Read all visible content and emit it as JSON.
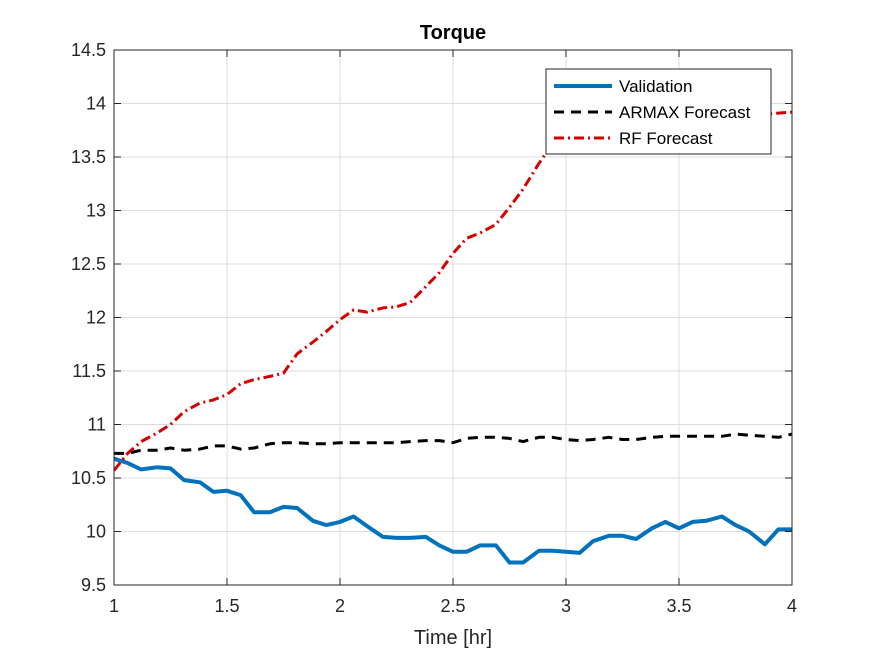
{
  "chart_data": {
    "type": "line",
    "title": "Torque",
    "xlabel": "Time [hr]",
    "ylabel": "",
    "xlim": [
      1,
      4
    ],
    "ylim": [
      9.5,
      14.5
    ],
    "xticks": [
      "1",
      "1.5",
      "2",
      "2.5",
      "3",
      "3.5",
      "4"
    ],
    "yticks": [
      "9.5",
      "10",
      "10.5",
      "11",
      "11.5",
      "12",
      "12.5",
      "13",
      "13.5",
      "14",
      "14.5"
    ],
    "grid": true,
    "legend_position": "top-right",
    "series": [
      {
        "name": "Validation",
        "color": "#0072BD",
        "style": "solid",
        "x": [
          1.0,
          1.06,
          1.12,
          1.19,
          1.25,
          1.31,
          1.38,
          1.44,
          1.5,
          1.56,
          1.62,
          1.69,
          1.75,
          1.81,
          1.88,
          1.94,
          2.0,
          2.06,
          2.12,
          2.19,
          2.25,
          2.31,
          2.38,
          2.44,
          2.5,
          2.56,
          2.62,
          2.69,
          2.75,
          2.81,
          2.88,
          2.94,
          3.0,
          3.06,
          3.12,
          3.19,
          3.25,
          3.31,
          3.38,
          3.44,
          3.5,
          3.56,
          3.62,
          3.69,
          3.75,
          3.81,
          3.88,
          3.94,
          4.0
        ],
        "y": [
          10.68,
          10.64,
          10.58,
          10.6,
          10.59,
          10.48,
          10.46,
          10.37,
          10.38,
          10.34,
          10.18,
          10.18,
          10.23,
          10.22,
          10.1,
          10.06,
          10.09,
          10.14,
          10.05,
          9.95,
          9.94,
          9.94,
          9.95,
          9.87,
          9.81,
          9.81,
          9.87,
          9.87,
          9.71,
          9.71,
          9.82,
          9.82,
          9.81,
          9.8,
          9.91,
          9.96,
          9.96,
          9.93,
          10.03,
          10.09,
          10.03,
          10.09,
          10.1,
          10.14,
          10.06,
          10.0,
          9.88,
          10.02,
          10.02
        ]
      },
      {
        "name": "ARMAX Forecast",
        "color": "#000000",
        "style": "dashed",
        "x": [
          1.0,
          1.06,
          1.12,
          1.19,
          1.25,
          1.31,
          1.38,
          1.44,
          1.5,
          1.56,
          1.62,
          1.69,
          1.75,
          1.81,
          1.88,
          1.94,
          2.0,
          2.06,
          2.12,
          2.19,
          2.25,
          2.31,
          2.38,
          2.44,
          2.5,
          2.56,
          2.62,
          2.69,
          2.75,
          2.81,
          2.88,
          2.94,
          3.0,
          3.06,
          3.12,
          3.19,
          3.25,
          3.31,
          3.38,
          3.44,
          3.5,
          3.56,
          3.62,
          3.69,
          3.75,
          3.81,
          3.88,
          3.94,
          4.0
        ],
        "y": [
          10.73,
          10.73,
          10.76,
          10.76,
          10.78,
          10.76,
          10.77,
          10.8,
          10.8,
          10.77,
          10.78,
          10.82,
          10.83,
          10.83,
          10.82,
          10.82,
          10.83,
          10.83,
          10.83,
          10.83,
          10.83,
          10.84,
          10.85,
          10.85,
          10.83,
          10.87,
          10.88,
          10.88,
          10.87,
          10.84,
          10.88,
          10.88,
          10.86,
          10.85,
          10.86,
          10.88,
          10.86,
          10.86,
          10.88,
          10.89,
          10.89,
          10.89,
          10.89,
          10.89,
          10.91,
          10.9,
          10.89,
          10.88,
          10.91
        ]
      },
      {
        "name": "RF Forecast",
        "color": "#D40000",
        "style": "dashdot",
        "x": [
          1.0,
          1.06,
          1.12,
          1.19,
          1.25,
          1.31,
          1.38,
          1.44,
          1.5,
          1.56,
          1.62,
          1.69,
          1.75,
          1.81,
          1.88,
          1.94,
          2.0,
          2.06,
          2.12,
          2.19,
          2.25,
          2.31,
          2.38,
          2.44,
          2.5,
          2.56,
          2.62,
          2.69,
          2.75,
          2.81,
          2.88,
          2.94,
          3.0,
          3.06,
          3.12,
          3.19,
          3.25,
          3.31,
          3.38,
          3.44,
          3.5,
          3.56,
          3.62,
          3.69,
          3.75,
          3.81,
          3.88,
          3.94,
          4.0
        ],
        "y": [
          10.57,
          10.73,
          10.84,
          10.92,
          11.0,
          11.12,
          11.2,
          11.23,
          11.28,
          11.38,
          11.42,
          11.45,
          11.48,
          11.66,
          11.77,
          11.87,
          11.98,
          12.07,
          12.05,
          12.09,
          12.1,
          12.14,
          12.29,
          12.42,
          12.6,
          12.74,
          12.79,
          12.87,
          13.03,
          13.2,
          13.44,
          13.62,
          13.7,
          13.76,
          13.82,
          13.86,
          13.88,
          13.88,
          13.88,
          13.89,
          13.89,
          13.89,
          13.89,
          13.9,
          13.9,
          13.9,
          13.9,
          13.91,
          13.92
        ]
      }
    ]
  }
}
